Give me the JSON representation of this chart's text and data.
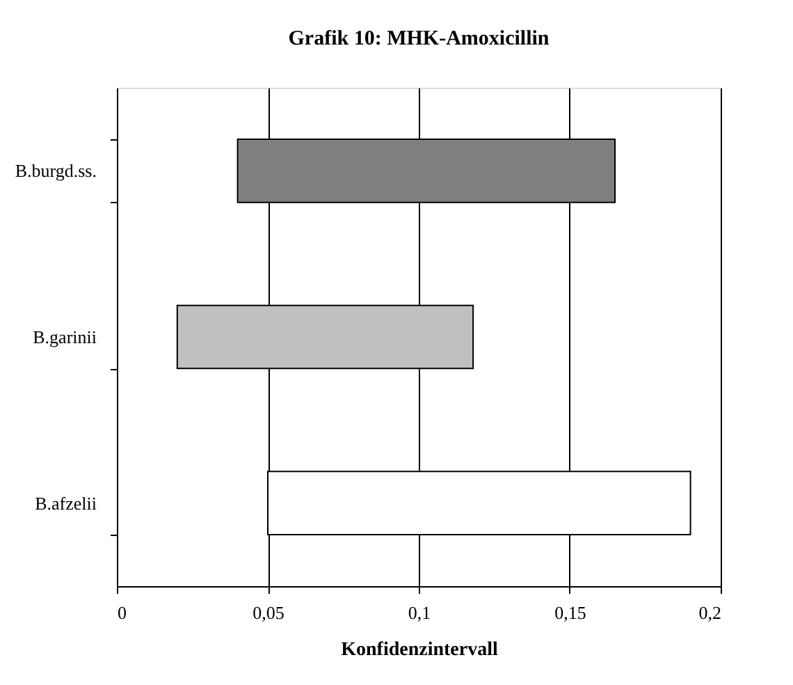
{
  "chart_data": {
    "type": "bar",
    "orientation": "horizontal",
    "title": "Grafik 10: MHK-Amoxicillin",
    "xlabel": "Konfidenzintervall",
    "categories": [
      "B.burgd.ss.",
      "B.garinii",
      "B.afzelii"
    ],
    "base": [
      0.04,
      0.02,
      0.05
    ],
    "values": [
      0.125,
      0.098,
      0.14
    ],
    "colors": [
      "#808080",
      "#c0c0c0",
      "#ffffff"
    ],
    "xlim": [
      0,
      0.2
    ],
    "xticks": [
      {
        "value": 0,
        "label": "0"
      },
      {
        "value": 0.05,
        "label": "0,05"
      },
      {
        "value": 0.1,
        "label": "0,1"
      },
      {
        "value": 0.15,
        "label": "0,15"
      },
      {
        "value": 0.2,
        "label": "0,2"
      }
    ],
    "grid": "x"
  }
}
